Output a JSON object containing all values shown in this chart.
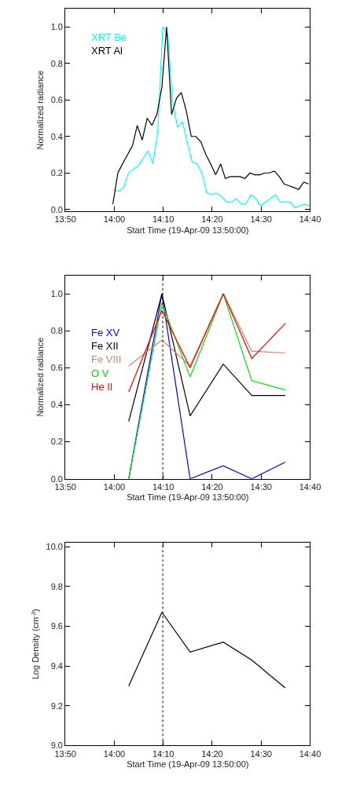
{
  "chart_data": [
    {
      "type": "line",
      "xlabel": "Start Time (19-Apr-09 13:50:00)",
      "ylabel": "Normalized radiance",
      "legend": "top left",
      "xlim": [
        13.8333,
        14.6667
      ],
      "xticks": [
        {
          "value": 13.8333,
          "label": "13:50"
        },
        {
          "value": 14.0,
          "label": "14:00"
        },
        {
          "value": 14.1667,
          "label": "14:10"
        },
        {
          "value": 14.3333,
          "label": "14:20"
        },
        {
          "value": 14.5,
          "label": "14:30"
        },
        {
          "value": 14.6667,
          "label": "14:40"
        }
      ],
      "ylim": [
        -0.01,
        1.1
      ],
      "yticks": [
        {
          "value": 0,
          "label": "0.0"
        },
        0.2,
        0.4,
        0.6,
        0.8,
        {
          "value": 1,
          "label": "1.0"
        }
      ],
      "series": [
        {
          "name": "XRT Be",
          "color": "#00ffff",
          "x": [
            13.998,
            14.015,
            14.032,
            14.048,
            14.065,
            14.082,
            14.098,
            14.115,
            14.132,
            14.148,
            14.165,
            14.182,
            14.198,
            14.215,
            14.232,
            14.248,
            14.265,
            14.282,
            14.298,
            14.315,
            14.332,
            14.348,
            14.365,
            14.382,
            14.398,
            14.415,
            14.432,
            14.448,
            14.465,
            14.482,
            14.498,
            14.515,
            14.532,
            14.548,
            14.565,
            14.582,
            14.598,
            14.615,
            14.632,
            14.648,
            14.665
          ],
          "values": [
            0.11,
            0.1,
            0.12,
            0.2,
            0.22,
            0.24,
            0.28,
            0.32,
            0.25,
            0.43,
            1.0,
            0.96,
            0.6,
            0.45,
            0.48,
            0.37,
            0.26,
            0.25,
            0.2,
            0.09,
            0.08,
            0.09,
            0.07,
            0.04,
            0.04,
            0.06,
            0.03,
            0.03,
            0.08,
            0.06,
            0.02,
            0.04,
            0.06,
            0.08,
            0.04,
            0.04,
            0.04,
            0.01,
            0.02,
            0.03,
            0.02
          ]
        },
        {
          "name": "XRT Al",
          "color": "#000000",
          "x": [
            13.995,
            14.012,
            14.028,
            14.045,
            14.062,
            14.078,
            14.095,
            14.112,
            14.128,
            14.145,
            14.162,
            14.178,
            14.195,
            14.212,
            14.228,
            14.245,
            14.262,
            14.278,
            14.295,
            14.312,
            14.328,
            14.345,
            14.362,
            14.378,
            14.395,
            14.412,
            14.428,
            14.445,
            14.462,
            14.478,
            14.495,
            14.512,
            14.528,
            14.545,
            14.562,
            14.578,
            14.595,
            14.612,
            14.628,
            14.645,
            14.662
          ],
          "values": [
            0.03,
            0.2,
            0.25,
            0.3,
            0.35,
            0.46,
            0.38,
            0.5,
            0.46,
            0.52,
            0.67,
            1.0,
            0.52,
            0.61,
            0.64,
            0.54,
            0.4,
            0.4,
            0.37,
            0.3,
            0.25,
            0.19,
            0.25,
            0.17,
            0.18,
            0.18,
            0.18,
            0.17,
            0.2,
            0.19,
            0.19,
            0.2,
            0.2,
            0.21,
            0.18,
            0.14,
            0.13,
            0.12,
            0.11,
            0.15,
            0.14
          ]
        }
      ]
    },
    {
      "type": "line",
      "xlabel": "Start Time (19-Apr-09 13:50:00)",
      "ylabel": "Normalized radiance",
      "legend": "top left",
      "xlim": [
        13.8333,
        14.6667
      ],
      "xticks": [
        {
          "value": 13.8333,
          "label": "13:50"
        },
        {
          "value": 14.0,
          "label": "14:00"
        },
        {
          "value": 14.1667,
          "label": "14:10"
        },
        {
          "value": 14.3333,
          "label": "14:20"
        },
        {
          "value": 14.5,
          "label": "14:30"
        },
        {
          "value": 14.6667,
          "label": "14:40"
        }
      ],
      "ylim": [
        0.0,
        1.1
      ],
      "yticks": [
        {
          "value": 0,
          "label": "0.0"
        },
        0.2,
        0.4,
        0.6,
        0.8,
        {
          "value": 1,
          "label": "1.0"
        }
      ],
      "x": [
        14.049,
        14.162,
        14.258,
        14.371,
        14.468,
        14.582
      ],
      "ref_lines": [
        {
          "axis": "x",
          "value": 14.165,
          "color": "#000000",
          "line_style": "dotted"
        }
      ],
      "series": [
        {
          "name": "Fe XV",
          "color": "#0000ff",
          "values": [
            0.0,
            1.0,
            0.0,
            0.07,
            0.0,
            0.09
          ]
        },
        {
          "name": "Fe XII",
          "color": "#000000",
          "values": [
            0.31,
            1.0,
            0.34,
            0.62,
            0.45,
            0.45
          ]
        },
        {
          "name": "Fe VIII",
          "color": "#c8866e",
          "values": [
            0.61,
            0.75,
            0.61,
            1.0,
            0.69,
            0.68
          ]
        },
        {
          "name": "O V",
          "color": "#00e000",
          "values": [
            0.0,
            0.95,
            0.55,
            1.0,
            0.53,
            0.48
          ]
        },
        {
          "name": "He II",
          "color": "#ff0000",
          "values": [
            0.47,
            0.91,
            0.6,
            1.0,
            0.65,
            0.84
          ]
        }
      ]
    },
    {
      "type": "line",
      "xlabel": "Start Time (19-Apr-09 13:50:00)",
      "ylabel": "Log Density (cm$^{-3}$)",
      "xlim": [
        13.8333,
        14.6667
      ],
      "xticks": [
        {
          "value": 13.8333,
          "label": "13:50"
        },
        {
          "value": 14.0,
          "label": "14:00"
        },
        {
          "value": 14.1667,
          "label": "14:10"
        },
        {
          "value": 14.3333,
          "label": "14:20"
        },
        {
          "value": 14.5,
          "label": "14:30"
        },
        {
          "value": 14.6667,
          "label": "14:40"
        }
      ],
      "ylim": [
        9.0,
        10.02
      ],
      "yticks": [
        {
          "value": 9,
          "label": "9.0"
        },
        9.2,
        9.4,
        9.6,
        9.8,
        {
          "value": 10,
          "label": "10.0"
        }
      ],
      "x": [
        14.049,
        14.162,
        14.258,
        14.371,
        14.468,
        14.582
      ],
      "ref_lines": [
        {
          "axis": "x",
          "value": 14.165,
          "color": "#000000",
          "line_style": "dotted"
        }
      ],
      "series": [
        {
          "color": "#000000",
          "values": [
            9.3,
            9.67,
            9.47,
            9.52,
            9.43,
            9.29
          ]
        }
      ]
    }
  ]
}
